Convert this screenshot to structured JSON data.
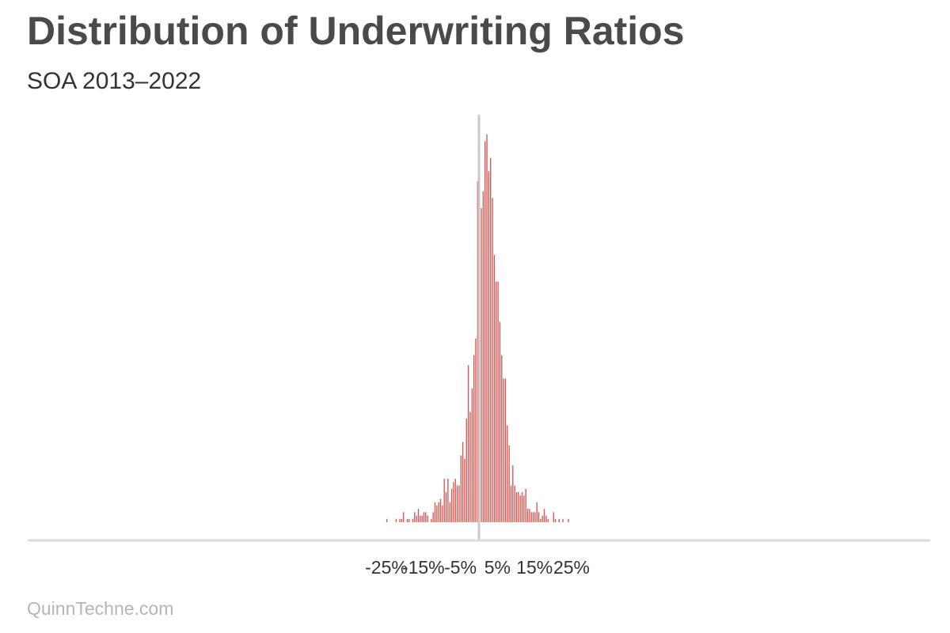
{
  "header": {
    "title": "Distribution of Underwriting Ratios",
    "subtitle": "SOA 2013–2022"
  },
  "footer": {
    "credit": "QuinnTechne.com"
  },
  "colors": {
    "bar": "#d9534f",
    "axis": "#dcdcdc",
    "zero_line": "#c8c8c8",
    "text": "#333333"
  },
  "chart_data": {
    "type": "bar",
    "title": "Distribution of Underwriting Ratios",
    "subtitle": "SOA 2013–2022",
    "xlabel": "",
    "ylabel": "",
    "bin_width": 0.5,
    "xlim": [
      -26.5,
      28.5
    ],
    "ylim": [
      0,
      100
    ],
    "grid": false,
    "reference_line_x": 0,
    "x_ticks": [
      -25,
      -15,
      -5,
      5,
      15,
      25
    ],
    "x_tick_labels": [
      "-25%",
      "-15%",
      "-5%",
      "5%",
      "15%",
      "25%"
    ],
    "bins_start": [
      -25,
      -22.5,
      -21.5,
      -21,
      -20.5,
      -19.5,
      -19,
      -18,
      -17.5,
      -17,
      -16.5,
      -16,
      -15.5,
      -15,
      -14.5,
      -14,
      -13,
      -12.5,
      -12,
      -11.5,
      -11,
      -10.5,
      -10,
      -9.5,
      -9,
      -8.5,
      -8,
      -7.5,
      -7,
      -6.5,
      -6,
      -5.5,
      -5,
      -4.5,
      -4,
      -3.5,
      -3,
      -2.5,
      -2,
      -1.5,
      -1,
      -0.5,
      0,
      0.5,
      1,
      1.5,
      2,
      2.5,
      3,
      3.5,
      4,
      4.5,
      5,
      5.5,
      6,
      6.5,
      7,
      7.5,
      8,
      8.5,
      9,
      9.5,
      10,
      10.5,
      11,
      11.5,
      12,
      12.5,
      13,
      13.5,
      14,
      14.5,
      15,
      15.5,
      16,
      16.5,
      17,
      17.5,
      18,
      18.5,
      20,
      20.5,
      21.5,
      22.5,
      24
    ],
    "values": [
      1,
      1,
      1,
      1,
      3,
      1,
      1,
      1,
      3,
      2,
      4,
      2,
      2,
      3,
      3,
      2,
      1,
      3,
      6,
      5,
      6,
      7,
      5,
      13,
      9,
      13,
      6,
      10,
      12,
      13,
      11,
      11,
      20,
      24,
      19,
      31,
      47,
      33,
      40,
      50,
      55,
      102,
      96,
      94,
      99,
      114,
      116,
      105,
      109,
      97,
      80,
      72,
      72,
      60,
      50,
      43,
      43,
      29,
      23,
      11,
      17,
      11,
      9,
      9,
      8,
      9,
      8,
      10,
      4,
      4,
      3,
      3,
      3,
      6,
      3,
      1,
      2,
      4,
      2,
      1,
      3,
      1,
      1,
      1,
      1
    ]
  }
}
